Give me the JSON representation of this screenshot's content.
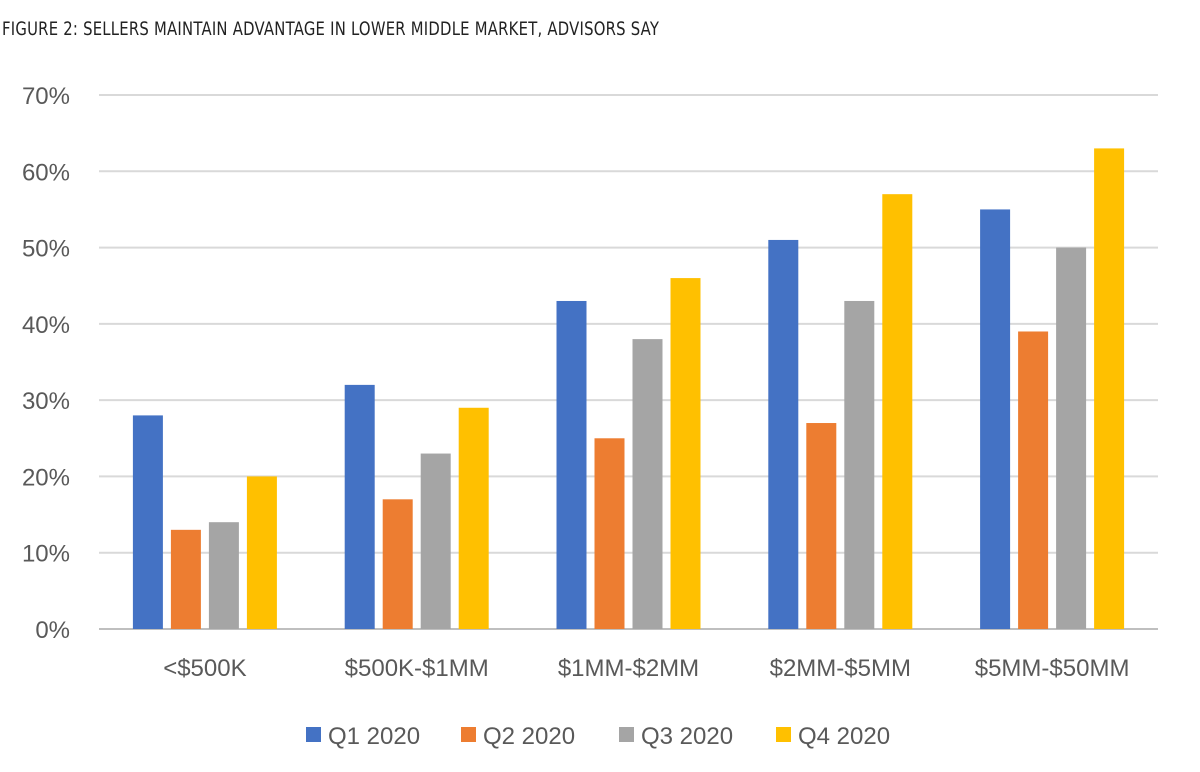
{
  "title": "FIGURE 2: SELLERS MAINTAIN ADVANTAGE IN LOWER MIDDLE MARKET, ADVISORS SAY",
  "chart_data": {
    "type": "bar",
    "categories": [
      "<$500K",
      "$500K-$1MM",
      "$1MM-$2MM",
      "$2MM-$5MM",
      "$5MM-$50MM"
    ],
    "series": [
      {
        "name": "Q1 2020",
        "color": "#4472C4",
        "values": [
          28,
          32,
          43,
          51,
          55
        ]
      },
      {
        "name": "Q2 2020",
        "color": "#ED7D31",
        "values": [
          13,
          17,
          25,
          27,
          39
        ]
      },
      {
        "name": "Q3 2020",
        "color": "#A5A5A5",
        "values": [
          14,
          23,
          38,
          43,
          50
        ]
      },
      {
        "name": "Q4 2020",
        "color": "#FFC000",
        "values": [
          20,
          29,
          46,
          57,
          63
        ]
      }
    ],
    "ylim": [
      0,
      70
    ],
    "yticks": [
      "0%",
      "10%",
      "20%",
      "30%",
      "40%",
      "50%",
      "60%",
      "70%"
    ],
    "ytick_values": [
      0,
      10,
      20,
      30,
      40,
      50,
      60,
      70
    ],
    "grid": true,
    "legend_position": "bottom"
  }
}
